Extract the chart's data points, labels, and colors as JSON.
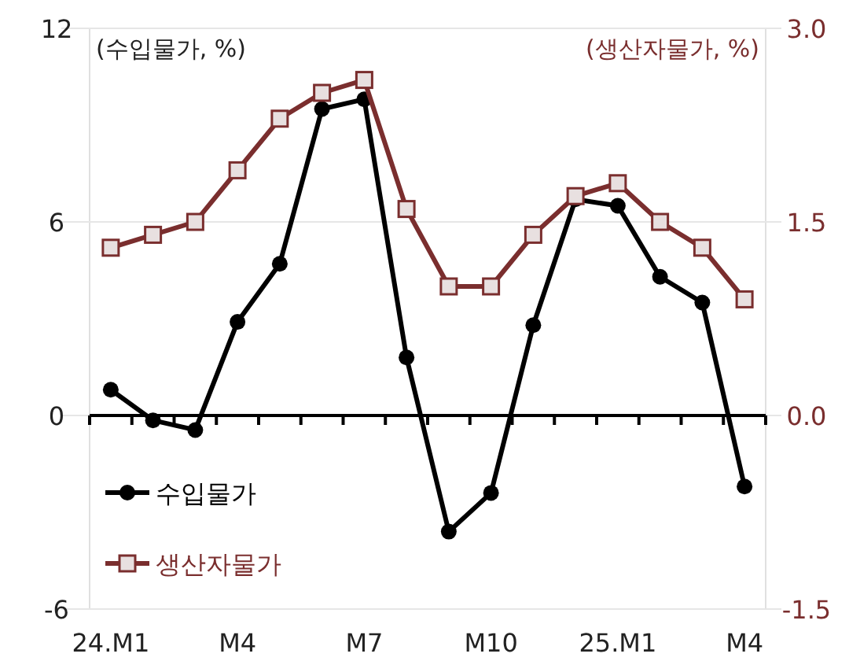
{
  "chart_data": {
    "type": "line",
    "ylabel": "(수입물가, %)",
    "y2label": "(생산자물가, %)",
    "categories": [
      "24.M1",
      null,
      null,
      "M4",
      null,
      null,
      "M7",
      null,
      null,
      "M10",
      null,
      null,
      "25.M1",
      null,
      null,
      "M4"
    ],
    "series": [
      {
        "name": "수입물가",
        "color": "#000000",
        "marker": "circle",
        "values": [
          0.8,
          -0.15,
          -0.45,
          2.9,
          4.7,
          9.5,
          9.8,
          1.8,
          -3.6,
          -2.4,
          2.8,
          6.7,
          6.5,
          4.3,
          3.5,
          -2.2
        ]
      },
      {
        "name": "생산자물가",
        "color": "#7a2e2e",
        "marker": "square",
        "axis": "y2",
        "values": [
          1.3,
          1.4,
          1.5,
          1.9,
          2.3,
          2.5,
          2.6,
          1.6,
          1.0,
          1.0,
          1.4,
          1.7,
          1.8,
          1.5,
          1.3,
          0.9
        ]
      }
    ],
    "ylim": [
      -6,
      12
    ],
    "yticks": [
      -6,
      0,
      6,
      12
    ],
    "y2lim": [
      -1.5,
      3.0
    ],
    "y2ticks": [
      {
        "value": -1.5,
        "label": "-1.5"
      },
      {
        "value": 0,
        "label": "0.0"
      },
      {
        "value": 1.5,
        "label": "1.5"
      },
      {
        "value": 3.0,
        "label": "3.0"
      }
    ],
    "grid": "y",
    "legend": "bottom left"
  }
}
